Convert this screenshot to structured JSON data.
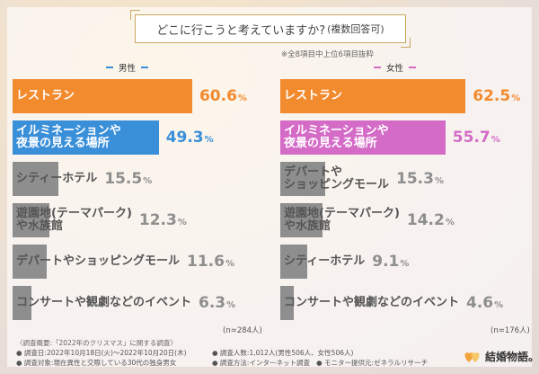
{
  "title": "どこに行こうと考えていますか?",
  "title_sub": "(複数回答可)",
  "note": "※全8項目中上位6項目抜粋",
  "colors": {
    "male": "#3a8fd9",
    "female": "#d46bc7",
    "top": "#f28a2e",
    "gray": "#8e8e8e"
  },
  "chart_data": [
    {
      "type": "bar",
      "orientation": "horizontal",
      "title": "男性",
      "n_label": "(n=284人)",
      "xlim": [
        0,
        100
      ],
      "categories": [
        "レストラン",
        "イルミネーションや夜景の見える場所",
        "シティーホテル",
        "遊園地(テーマパーク)や水族館",
        "デパートやショッピングモール",
        "コンサートや観劇などのイベント"
      ],
      "labels": [
        [
          "レストラン"
        ],
        [
          "イルミネーションや",
          "夜景の見える場所"
        ],
        [
          "シティーホテル"
        ],
        [
          "遊園地(テーマパーク)",
          "や水族館"
        ],
        [
          "デパートやショッピングモール"
        ],
        [
          "コンサートや観劇などのイベント"
        ]
      ],
      "values": [
        60.6,
        49.3,
        15.5,
        12.3,
        11.6,
        6.3
      ],
      "value_labels": [
        "60.6",
        "49.3",
        "15.5",
        "12.3",
        "11.6",
        "6.3"
      ]
    },
    {
      "type": "bar",
      "orientation": "horizontal",
      "title": "女性",
      "n_label": "(n=176人)",
      "xlim": [
        0,
        100
      ],
      "categories": [
        "レストラン",
        "イルミネーションや夜景の見える場所",
        "デパートやショッピングモール",
        "遊園地(テーマパーク)や水族館",
        "シティーホテル",
        "コンサートや観劇などのイベント"
      ],
      "labels": [
        [
          "レストラン"
        ],
        [
          "イルミネーションや",
          "夜景の見える場所"
        ],
        [
          "デパートや",
          "ショッピングモール"
        ],
        [
          "遊園地(テーマパーク)",
          "や水族館"
        ],
        [
          "シティーホテル"
        ],
        [
          "コンサートや観劇などのイベント"
        ]
      ],
      "values": [
        62.5,
        55.7,
        15.3,
        14.2,
        9.1,
        4.6
      ],
      "value_labels": [
        "62.5",
        "55.7",
        "15.3",
        "14.2",
        "9.1",
        "4.6"
      ]
    }
  ],
  "pct_symbol": "%",
  "footer": {
    "heading": "〈調査概要:「2022年のクリスマス」に関する調査〉",
    "period": "● 調査日:2022年10月18日(火)〜2022年10月20日(木)",
    "target": "● 調査対象:現在異性と交際している30代の独身男女",
    "count": "● 調査人数:1,012人(男性506人、女性506人)",
    "method": "● 調査方法:インターネット調査",
    "monitor": "● モニター提供元:ゼネラルリサーチ"
  },
  "logo_text": "結婚物語。"
}
